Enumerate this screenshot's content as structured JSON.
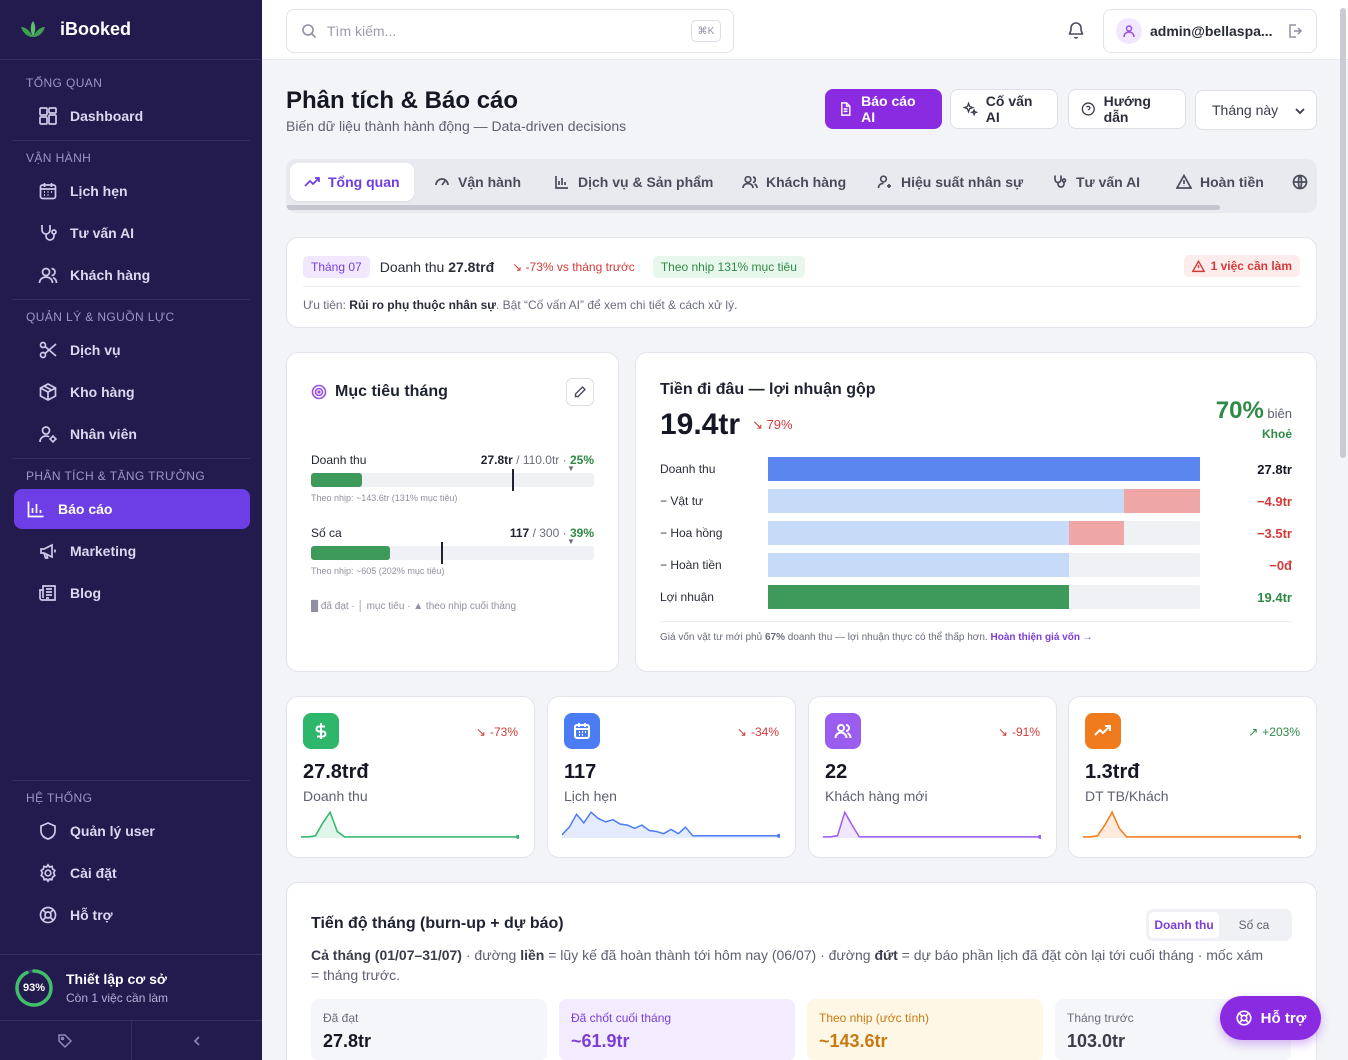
{
  "app": {
    "name": "iBooked"
  },
  "sidebar": {
    "sections": [
      {
        "title": "TỔNG QUAN",
        "items": [
          {
            "label": "Dashboard",
            "icon": "dashboard-icon"
          }
        ]
      },
      {
        "title": "VẬN HÀNH",
        "items": [
          {
            "label": "Lịch hẹn",
            "icon": "calendar-icon"
          },
          {
            "label": "Tư vấn AI",
            "icon": "stethoscope-icon"
          },
          {
            "label": "Khách hàng",
            "icon": "users-icon"
          }
        ]
      },
      {
        "title": "QUẢN LÝ & NGUỒN LỰC",
        "items": [
          {
            "label": "Dịch vụ",
            "icon": "scissors-icon"
          },
          {
            "label": "Kho hàng",
            "icon": "package-icon"
          },
          {
            "label": "Nhân viên",
            "icon": "staff-icon"
          }
        ]
      },
      {
        "title": "PHÂN TÍCH & TĂNG TRƯỞNG",
        "items": [
          {
            "label": "Báo cáo",
            "icon": "bar-chart-icon",
            "active": true
          },
          {
            "label": "Marketing",
            "icon": "megaphone-icon"
          },
          {
            "label": "Blog",
            "icon": "newspaper-icon"
          }
        ]
      },
      {
        "title": "HỆ THỐNG",
        "items": [
          {
            "label": "Quản lý user",
            "icon": "shield-icon"
          },
          {
            "label": "Cài đặt",
            "icon": "gear-icon"
          },
          {
            "label": "Hỗ trợ",
            "icon": "lifebuoy-icon"
          }
        ]
      }
    ],
    "setup": {
      "percent": "93%",
      "progress": 0.93,
      "title": "Thiết lập cơ sở",
      "subtitle": "Còn 1 việc cần làm"
    }
  },
  "header": {
    "search_placeholder": "Tìm kiếm...",
    "shortcut": "⌘K",
    "user": "admin@bellaspa..."
  },
  "page": {
    "title": "Phân tích & Báo cáo",
    "subtitle": "Biến dữ liệu thành hành động — Data-driven decisions"
  },
  "actions": {
    "ai_report": "Báo cáo AI",
    "ai_advisor": "Cố vấn AI",
    "guide": "Hướng dẫn",
    "period": "Tháng này"
  },
  "tabs": [
    "Tổng quan",
    "Vận hành",
    "Dịch vụ & Sản phẩm",
    "Khách hàng",
    "Hiệu suất nhân sự",
    "Tư vấn AI",
    "Hoàn tiền"
  ],
  "summary": {
    "month": "Tháng 07",
    "revenue_label": "Doanh thu",
    "revenue": "27.8trđ",
    "delta": "-73% vs tháng trước",
    "pace": "Theo nhịp 131% mục tiêu",
    "todo": "1 việc cần làm",
    "priority_prefix": "Ưu tiên:",
    "priority": "Rủi ro phụ thuộc nhân sự",
    "priority_hint": ". Bật “Cố vấn AI” để xem chi tiết & cách xử lý."
  },
  "goals": {
    "title": "Mục tiêu tháng",
    "rows": [
      {
        "label": "Doanh thu",
        "achieved": "27.8tr",
        "target": "110.0tr",
        "pct": "25%",
        "pace": "Theo nhịp: ~143.6tr (131% mục tiêu)",
        "fill": 0.25
      },
      {
        "label": "Số ca",
        "achieved": "117",
        "target": "300",
        "pct": "39%",
        "pace": "Theo nhịp: ~605 (202% mục tiêu)",
        "fill": 0.39
      }
    ],
    "legend": "█ đã đạt · │ mục tiêu · ▲ theo nhịp cuối tháng"
  },
  "profit": {
    "title": "Tiền đi đâu — lợi nhuận gộp",
    "amount": "19.4tr",
    "change": "79%",
    "margin": "70%",
    "margin_label": "biên",
    "health": "Khoẻ",
    "rows": [
      {
        "label": "Doanh thu",
        "value": "27.8tr"
      },
      {
        "label": "− Vật tư",
        "value": "−4.9tr"
      },
      {
        "label": "− Hoa hồng",
        "value": "−3.5tr"
      },
      {
        "label": "− Hoàn tiền",
        "value": "−0đ"
      },
      {
        "label": "Lợi nhuận",
        "value": "19.4tr"
      }
    ],
    "note_pre": "Giá vốn vật tư mới phủ",
    "note_pct": "67%",
    "note_post": "doanh thu — lợi nhuận thực có thể thấp hơn.",
    "note_link": "Hoàn thiện giá vốn →"
  },
  "kpis": [
    {
      "value": "27.8trđ",
      "label": "Doanh thu",
      "delta": "-73%",
      "color": "#2eb66b",
      "icon": "dollar-icon"
    },
    {
      "value": "117",
      "label": "Lịch hẹn",
      "delta": "-34%",
      "color": "#4c7cf3",
      "icon": "calendar-icon"
    },
    {
      "value": "22",
      "label": "Khách hàng mới",
      "delta": "-91%",
      "color": "#9b5cf0",
      "icon": "users-icon"
    },
    {
      "value": "1.3trđ",
      "label": "DT TB/Khách",
      "delta": "+203%",
      "color": "#f07b1e",
      "icon": "trending-up-icon"
    }
  ],
  "burnup": {
    "title": "Tiến độ tháng (burn-up + dự báo)",
    "toggle": [
      "Doanh thu",
      "Số ca"
    ],
    "desc_pre": "Cả tháng (01/07–31/07)",
    "desc_1": " · đường ",
    "desc_solid": "liền",
    "desc_2": " = lũy kế đã hoàn thành tới hôm nay (06/07) · đường ",
    "desc_dash": "đứt",
    "desc_3": " = dự báo phần lịch đã đặt còn lại tới cuối tháng · mốc xám = tháng trước.",
    "stats": [
      {
        "label": "Đã đạt",
        "value": "27.8tr"
      },
      {
        "label": "Đã chốt cuối tháng",
        "value": "~61.9tr"
      },
      {
        "label": "Theo nhịp (ước tính)",
        "value": "~143.6tr"
      },
      {
        "label": "Tháng trước",
        "value": "103.0tr"
      }
    ]
  },
  "support_button": "Hỗ trợ"
}
